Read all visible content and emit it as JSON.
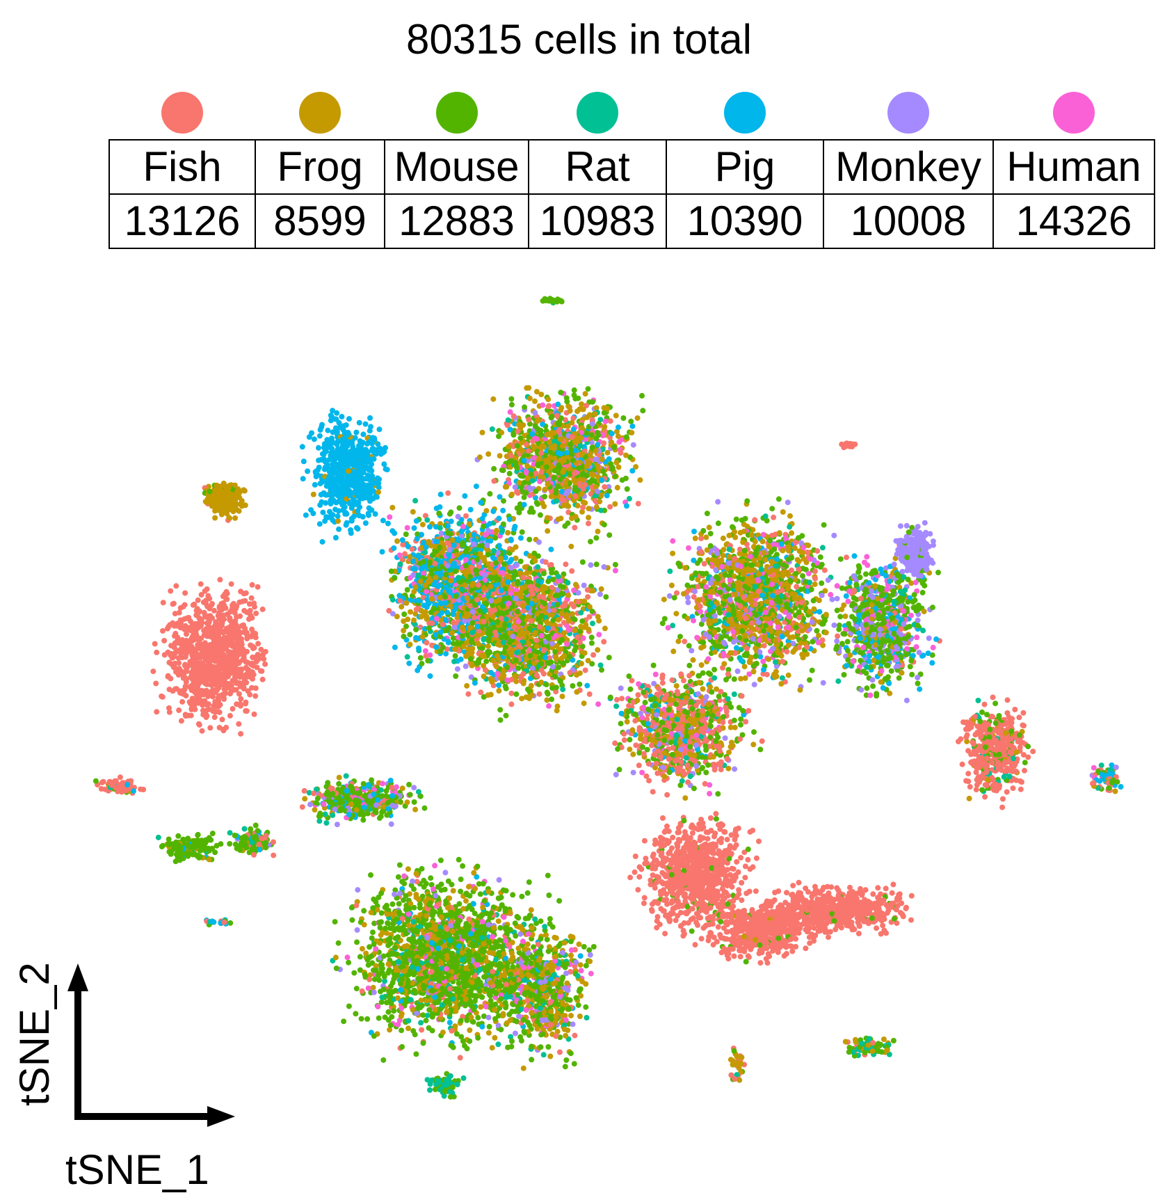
{
  "title": "80315 cells in total",
  "legend": [
    {
      "name": "Fish",
      "count": "13126",
      "color": "#F8766D"
    },
    {
      "name": "Frog",
      "count": "8599",
      "color": "#C49A00"
    },
    {
      "name": "Mouse",
      "count": "12883",
      "color": "#53B400"
    },
    {
      "name": "Rat",
      "count": "10983",
      "color": "#00C094"
    },
    {
      "name": "Pig",
      "count": "10390",
      "color": "#00B6EB"
    },
    {
      "name": "Monkey",
      "count": "10008",
      "color": "#A58AFF"
    },
    {
      "name": "Human",
      "count": "14326",
      "color": "#FB61D7"
    }
  ],
  "chart_data": {
    "type": "scatter",
    "title": "80315 cells in total",
    "xlabel": "tSNE_1",
    "ylabel": "tSNE_2",
    "series": [
      {
        "name": "Fish",
        "count": 13126
      },
      {
        "name": "Frog",
        "count": 8599
      },
      {
        "name": "Mouse",
        "count": 12883
      },
      {
        "name": "Rat",
        "count": 10983
      },
      {
        "name": "Pig",
        "count": 10390
      },
      {
        "name": "Monkey",
        "count": 10008
      },
      {
        "name": "Human",
        "count": 14326
      }
    ],
    "grid": false,
    "legend_placement": "top"
  }
}
